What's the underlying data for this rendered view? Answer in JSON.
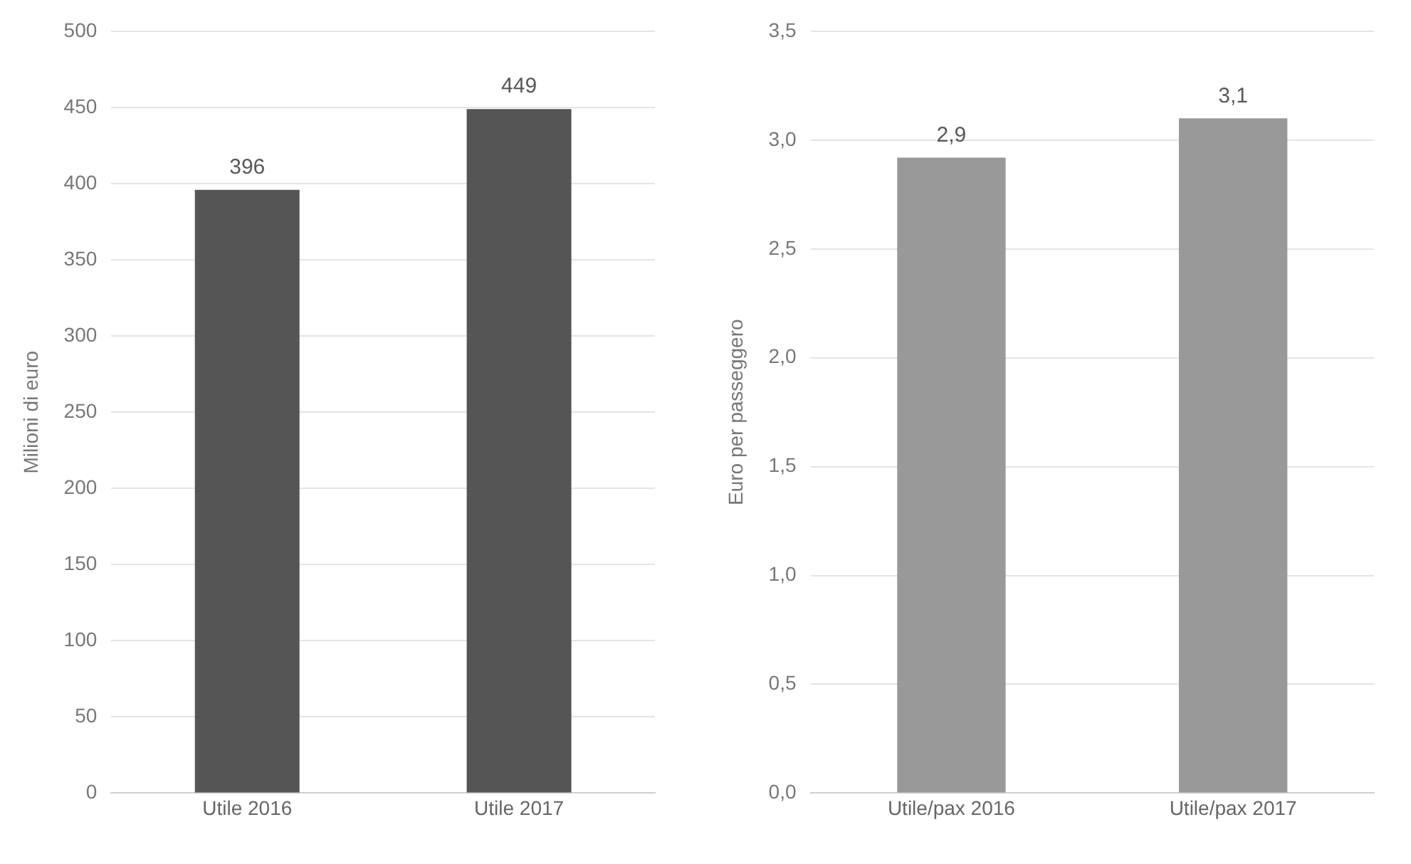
{
  "chart_data": [
    {
      "type": "bar",
      "ylabel": "Milioni di euro",
      "categories": [
        "Utile 2016",
        "Utile 2017"
      ],
      "values": [
        396,
        449
      ],
      "color": "#555555",
      "ylim": [
        0,
        500
      ],
      "yticks": [
        0,
        50,
        100,
        150,
        200,
        250,
        300,
        350,
        400,
        450,
        500
      ],
      "grid": "y",
      "data_labels": true
    },
    {
      "type": "bar",
      "ylabel": "Euro per passeggero",
      "categories": [
        "Utile/pax 2016",
        "Utile/pax 2017"
      ],
      "values": [
        2.92,
        3.1
      ],
      "value_labels": [
        "2,9",
        "3,1"
      ],
      "color": "#999999",
      "ylim": [
        0,
        3.5
      ],
      "yticks": [
        {
          "value": 0,
          "label": "0,0"
        },
        {
          "value": 0.5,
          "label": "0,5"
        },
        {
          "value": 1,
          "label": "1,0"
        },
        {
          "value": 1.5,
          "label": "1,5"
        },
        {
          "value": 2,
          "label": "2,0"
        },
        {
          "value": 2.5,
          "label": "2,5"
        },
        {
          "value": 3,
          "label": "3,0"
        },
        {
          "value": 3.5,
          "label": "3,5"
        }
      ],
      "grid": "y"
    }
  ]
}
